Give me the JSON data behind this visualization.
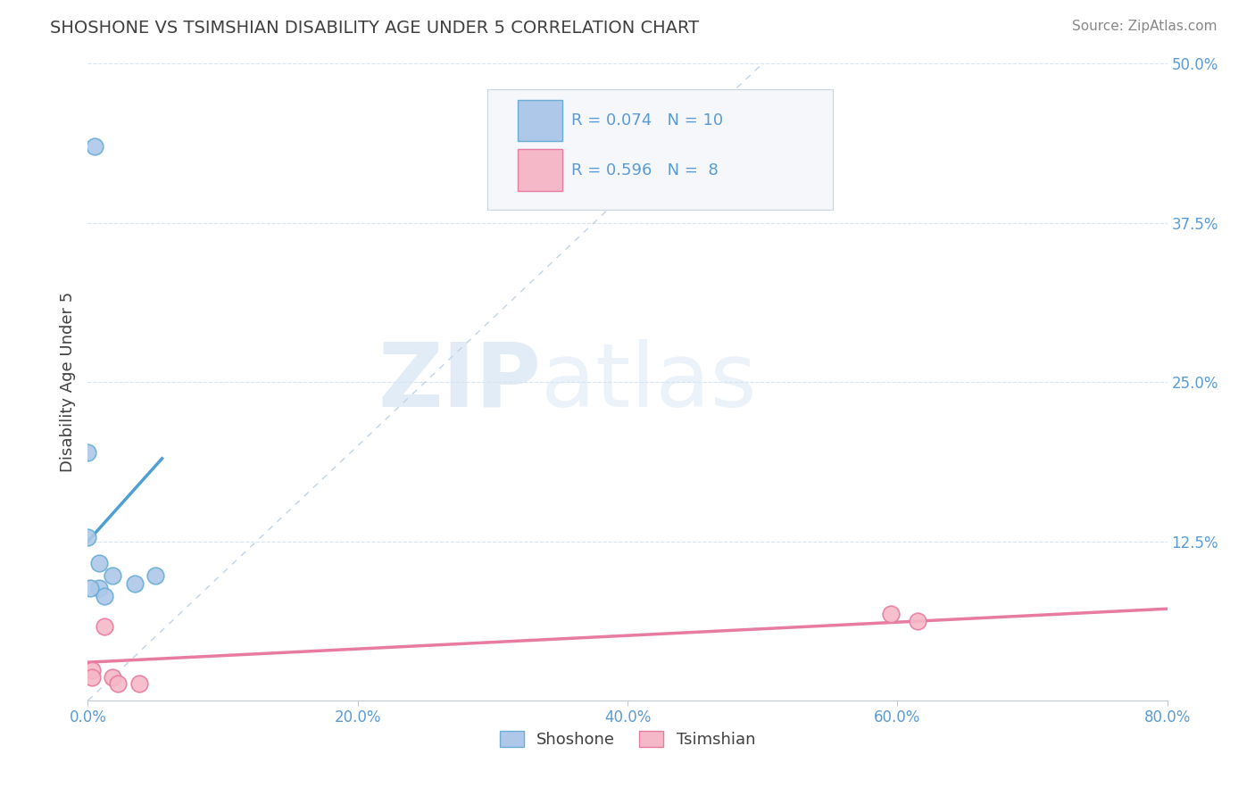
{
  "title": "SHOSHONE VS TSIMSHIAN DISABILITY AGE UNDER 5 CORRELATION CHART",
  "source_text": "Source: ZipAtlas.com",
  "ylabel": "Disability Age Under 5",
  "xlim": [
    0.0,
    0.8
  ],
  "ylim": [
    0.0,
    0.5
  ],
  "xticks": [
    0.0,
    0.2,
    0.4,
    0.6,
    0.8
  ],
  "yticks": [
    0.0,
    0.125,
    0.25,
    0.375,
    0.5
  ],
  "ytick_labels": [
    "",
    "12.5%",
    "25.0%",
    "37.5%",
    "50.0%"
  ],
  "xtick_labels": [
    "0.0%",
    "20.0%",
    "40.0%",
    "60.0%",
    "80.0%"
  ],
  "watermark_zip": "ZIP",
  "watermark_atlas": "atlas",
  "shoshone_color": "#adc8e8",
  "shoshone_edge_color": "#6aaed6",
  "tsimshian_color": "#f5b8c8",
  "tsimshian_edge_color": "#e87ca0",
  "regression_line_color_shoshone": "#4e9fd4",
  "regression_line_color_tsimshian": "#e87ca0",
  "diagonal_line_color": "#c0d4e8",
  "R_shoshone": "0.074",
  "N_shoshone": "10",
  "R_tsimshian": "0.596",
  "N_tsimshian": " 8",
  "shoshone_points_x": [
    0.005,
    0.0,
    0.0,
    0.008,
    0.008,
    0.018,
    0.012,
    0.035,
    0.05,
    0.002
  ],
  "shoshone_points_y": [
    0.435,
    0.195,
    0.128,
    0.108,
    0.088,
    0.098,
    0.082,
    0.092,
    0.098,
    0.088
  ],
  "tsimshian_points_x": [
    0.003,
    0.003,
    0.012,
    0.018,
    0.022,
    0.038,
    0.595,
    0.615
  ],
  "tsimshian_points_y": [
    0.024,
    0.018,
    0.058,
    0.018,
    0.013,
    0.013,
    0.068,
    0.062
  ],
  "shoshone_regline_x": [
    0.0,
    0.055
  ],
  "shoshone_regline_y": [
    0.125,
    0.19
  ],
  "tsimshian_regline_x": [
    0.0,
    0.8
  ],
  "tsimshian_regline_y": [
    0.03,
    0.072
  ],
  "legend_shoshone_label": "Shoshone",
  "legend_tsimshian_label": "Tsimshian",
  "title_color": "#404040",
  "source_color": "#888888",
  "axis_label_color": "#404040",
  "tick_label_color": "#5b9bd5",
  "legend_R_color": "#5b9bd5",
  "background_color": "#ffffff",
  "grid_color": "#d8e4f0",
  "legend_bg_color": "#f5f7fa",
  "legend_border_color": "#c8d4e0"
}
